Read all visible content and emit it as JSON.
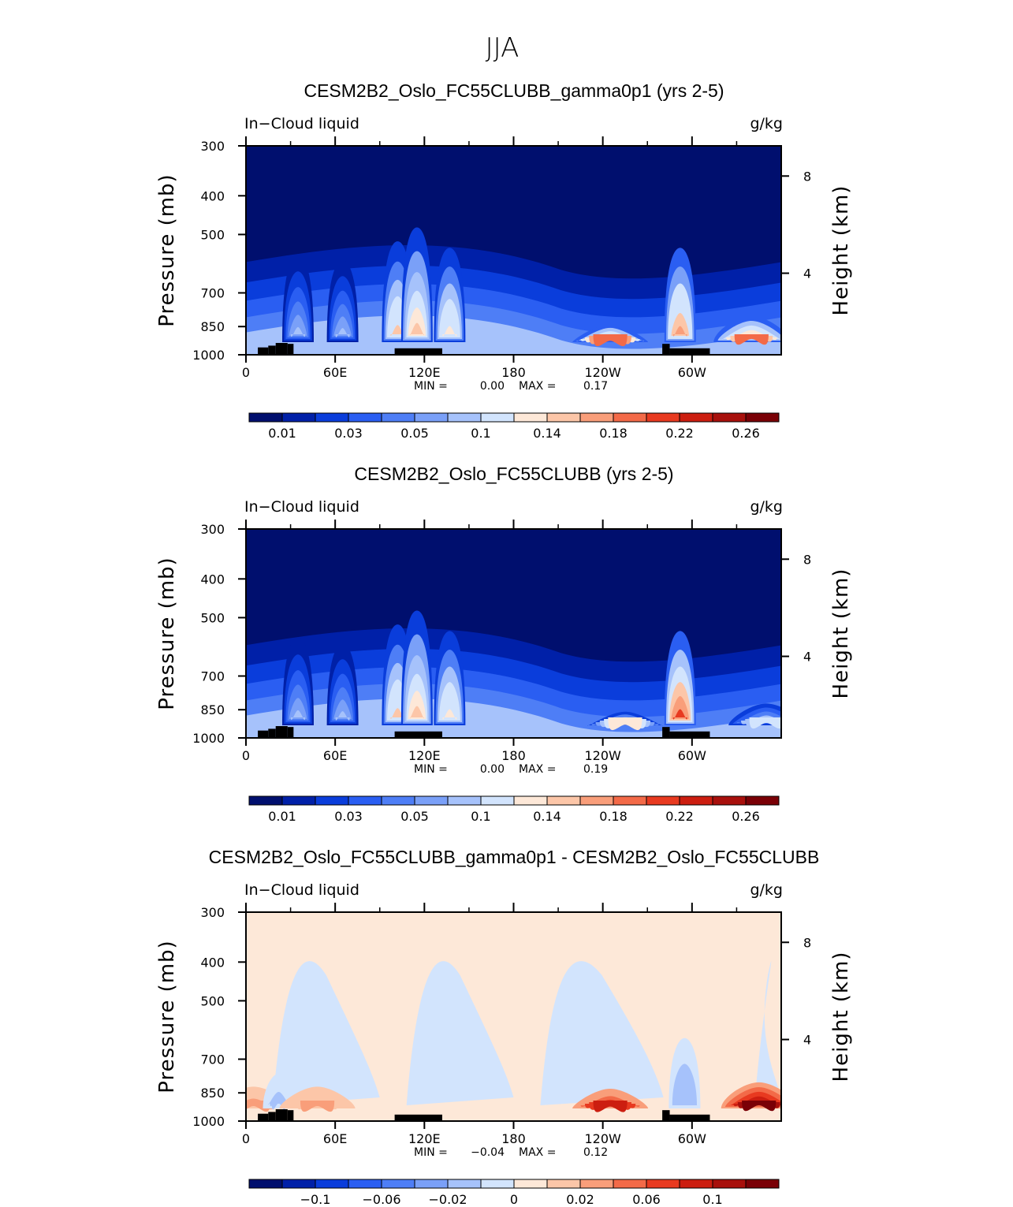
{
  "figure_title": "JJA",
  "colors": {
    "abs_scale": [
      "#000f6e",
      "#0020a8",
      "#0a3ddb",
      "#2a5ef2",
      "#4e7ef6",
      "#7aa0f8",
      "#a6c2fb",
      "#d2e4fd",
      "#fde8d8",
      "#fcc6a8",
      "#f99e7a",
      "#f36a48",
      "#e83a20",
      "#cc1e10",
      "#a8100c",
      "#7a0006"
    ],
    "diff_scale": [
      "#000f6e",
      "#0020a8",
      "#0a3ddb",
      "#2a5ef2",
      "#4e7ef6",
      "#7aa0f8",
      "#a6c2fb",
      "#d2e4fd",
      "#fde8d8",
      "#fcc6a8",
      "#f99e7a",
      "#f36a48",
      "#e83a20",
      "#cc1e10",
      "#a8100c",
      "#7a0006"
    ],
    "terrain": "#000000"
  },
  "chart_data": [
    {
      "type": "heatmap",
      "title": "CESM2B2_Oslo_FC55CLUBB_gamma0p1 (yrs 2-5)",
      "left_label": "In−Cloud liquid",
      "right_label": "g/kg",
      "ylabel": "Pressure (mb)",
      "ylabel_right": "Height (km)",
      "xticks": [
        "0",
        "60E",
        "120E",
        "180",
        "120W",
        "60W"
      ],
      "yticks": [
        "300",
        "400",
        "500",
        "700",
        "850",
        "1000"
      ],
      "yticks_right": [
        "8",
        "4"
      ],
      "stats": {
        "min_label": "MIN =",
        "min": "0.00",
        "max_label": "MAX =",
        "max": "0.17"
      },
      "colorbar_labels": [
        "0.01",
        "0.03",
        "0.05",
        "0.1",
        "0.14",
        "0.18",
        "0.22",
        "0.26"
      ],
      "colorbar_levels": [
        0.005,
        0.01,
        0.02,
        0.03,
        0.04,
        0.05,
        0.07,
        0.1,
        0.12,
        0.14,
        0.16,
        0.18,
        0.2,
        0.22,
        0.24,
        0.26
      ],
      "x_range": [
        0,
        360
      ],
      "y_range": [
        1000,
        300
      ],
      "features": [
        {
          "lon": 35,
          "p_top": 560,
          "peak": 0.06
        },
        {
          "lon": 65,
          "p_top": 580,
          "peak": 0.05
        },
        {
          "lon": 102,
          "p_top": 520,
          "peak": 0.12
        },
        {
          "lon": 115,
          "p_top": 480,
          "peak": 0.13
        },
        {
          "lon": 137,
          "p_top": 540,
          "peak": 0.11
        },
        {
          "lon": 245,
          "p_top": 840,
          "peak": 0.17
        },
        {
          "lon": 292,
          "p_top": 540,
          "peak": 0.15
        },
        {
          "lon": 340,
          "p_top": 800,
          "peak": 0.16
        }
      ]
    },
    {
      "type": "heatmap",
      "title": "CESM2B2_Oslo_FC55CLUBB (yrs 2-5)",
      "left_label": "In−Cloud liquid",
      "right_label": "g/kg",
      "ylabel": "Pressure (mb)",
      "ylabel_right": "Height (km)",
      "xticks": [
        "0",
        "60E",
        "120E",
        "180",
        "120W",
        "60W"
      ],
      "yticks": [
        "300",
        "400",
        "500",
        "700",
        "850",
        "1000"
      ],
      "yticks_right": [
        "8",
        "4"
      ],
      "stats": {
        "min_label": "MIN =",
        "min": "0.00",
        "max_label": "MAX =",
        "max": "0.19"
      },
      "colorbar_labels": [
        "0.01",
        "0.03",
        "0.05",
        "0.1",
        "0.14",
        "0.18",
        "0.22",
        "0.26"
      ],
      "colorbar_levels": [
        0.005,
        0.01,
        0.02,
        0.03,
        0.04,
        0.05,
        0.07,
        0.1,
        0.12,
        0.14,
        0.16,
        0.18,
        0.2,
        0.22,
        0.24,
        0.26
      ],
      "x_range": [
        0,
        360
      ],
      "y_range": [
        1000,
        300
      ],
      "features": [
        {
          "lon": 35,
          "p_top": 560,
          "peak": 0.06
        },
        {
          "lon": 65,
          "p_top": 580,
          "peak": 0.05
        },
        {
          "lon": 102,
          "p_top": 520,
          "peak": 0.12
        },
        {
          "lon": 115,
          "p_top": 480,
          "peak": 0.13
        },
        {
          "lon": 137,
          "p_top": 540,
          "peak": 0.11
        },
        {
          "lon": 255,
          "p_top": 860,
          "peak": 0.1
        },
        {
          "lon": 292,
          "p_top": 540,
          "peak": 0.19
        },
        {
          "lon": 350,
          "p_top": 820,
          "peak": 0.08
        }
      ]
    },
    {
      "type": "heatmap",
      "title": "CESM2B2_Oslo_FC55CLUBB_gamma0p1 - CESM2B2_Oslo_FC55CLUBB",
      "left_label": "In−Cloud liquid",
      "right_label": "g/kg",
      "ylabel": "Pressure (mb)",
      "ylabel_right": "Height (km)",
      "xticks": [
        "0",
        "60E",
        "120E",
        "180",
        "120W",
        "60W"
      ],
      "yticks": [
        "300",
        "400",
        "500",
        "700",
        "850",
        "1000"
      ],
      "yticks_right": [
        "8",
        "4"
      ],
      "stats": {
        "min_label": "MIN =",
        "min": "−0.04",
        "max_label": "MAX =",
        "max": "0.12"
      },
      "colorbar_labels": [
        "−0.1",
        "−0.06",
        "−0.02",
        "0",
        "0.02",
        "0.06",
        "0.1"
      ],
      "colorbar_levels": [
        -0.14,
        -0.12,
        -0.1,
        -0.08,
        -0.06,
        -0.04,
        -0.02,
        -0.005,
        0.005,
        0.02,
        0.04,
        0.06,
        0.08,
        0.1,
        0.12,
        0.14
      ],
      "x_range": [
        0,
        360
      ],
      "y_range": [
        1000,
        300
      ],
      "features": [
        {
          "lon": 5,
          "p_top": 820,
          "peak": 0.03
        },
        {
          "lon": 22,
          "p_top": 760,
          "peak": -0.03
        },
        {
          "lon": 48,
          "p_top": 820,
          "peak": 0.02
        },
        {
          "lon": 245,
          "p_top": 830,
          "peak": 0.09
        },
        {
          "lon": 295,
          "p_top": 620,
          "peak": -0.04
        },
        {
          "lon": 345,
          "p_top": 800,
          "peak": 0.12
        }
      ]
    }
  ]
}
